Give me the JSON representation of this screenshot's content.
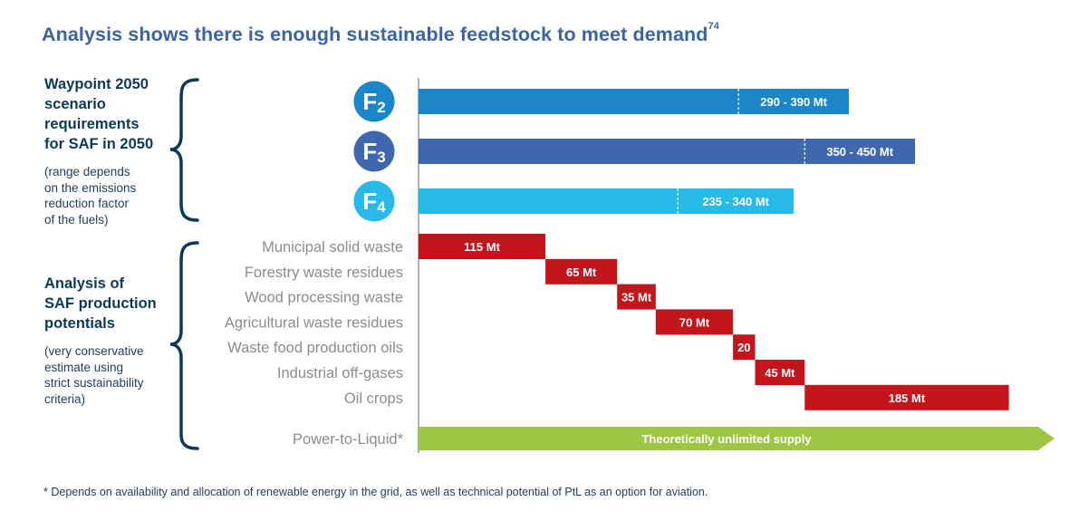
{
  "page": {
    "title": "Analysis shows there is enough sustainable feedstock to meet demand",
    "title_ref": "74",
    "section1": {
      "heading": [
        "Waypoint 2050",
        "scenario",
        "requirements",
        "for SAF in 2050"
      ],
      "note": [
        "(range depends",
        "on the emissions",
        "reduction factor",
        "of the fuels)"
      ]
    },
    "section2": {
      "heading": [
        "Analysis of",
        "SAF production",
        "potentials"
      ],
      "note": [
        "(very conservative",
        "estimate using",
        "strict sustainability",
        "criteria)"
      ]
    },
    "footnote": "* Depends on availability and allocation of renewable energy in the grid, as well as technical potential of PtL as an option for aviation."
  },
  "chart_data": {
    "type": "bar",
    "units": "Mt",
    "x_range": [
      0,
      700
    ],
    "requirements": [
      {
        "fuel": "F",
        "sub": "2",
        "low": 290,
        "high": 390,
        "label": "290 - 390 Mt",
        "color": "#1b86c8"
      },
      {
        "fuel": "F",
        "sub": "3",
        "low": 350,
        "high": 450,
        "label": "350 - 450 Mt",
        "color": "#3e67b0"
      },
      {
        "fuel": "F",
        "sub": "4",
        "low": 235,
        "high": 340,
        "label": "235 - 340 Mt",
        "color": "#27b9e8"
      }
    ],
    "potentials": [
      {
        "category": "Municipal solid waste",
        "value": 115,
        "label": "115 Mt"
      },
      {
        "category": "Forestry waste residues",
        "value": 65,
        "label": "65 Mt"
      },
      {
        "category": "Wood processing waste",
        "value": 35,
        "label": "35 Mt"
      },
      {
        "category": "Agricultural waste residues",
        "value": 70,
        "label": "70 Mt"
      },
      {
        "category": "Waste food production oils",
        "value": 20,
        "label": "20"
      },
      {
        "category": "Industrial off-gases",
        "value": 45,
        "label": "45 Mt"
      },
      {
        "category": "Oil crops",
        "value": 185,
        "label": "185 Mt"
      }
    ],
    "potentials_color": "#c2151c",
    "ptl": {
      "category": "Power-to-Liquid*",
      "label": "Theoretically unlimited supply",
      "color": "#9dc645"
    }
  }
}
